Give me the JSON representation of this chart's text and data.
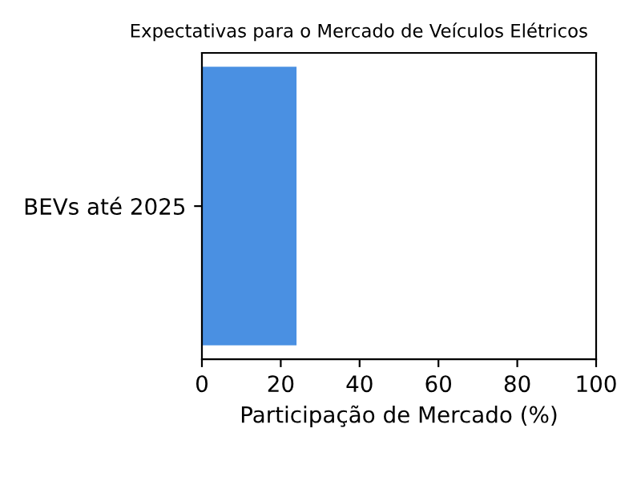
{
  "chart_data": {
    "type": "bar",
    "orientation": "horizontal",
    "title": "Expectativas para o Mercado de Veículos Elétricos",
    "xlabel": "Participação de Mercado (%)",
    "categories": [
      "BEVs até 2025"
    ],
    "values": [
      24
    ],
    "color": "#4a90e2",
    "xlim": [
      0,
      100
    ],
    "xticks": [
      0,
      20,
      40,
      60,
      80,
      100
    ],
    "grid": false,
    "legend": false
  }
}
